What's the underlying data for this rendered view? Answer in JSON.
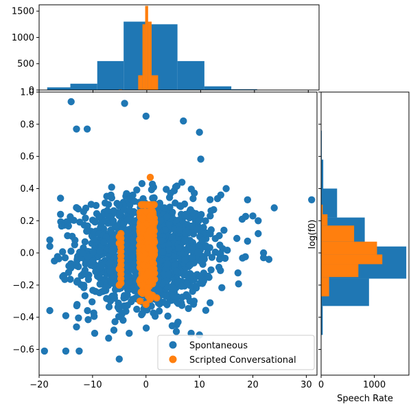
{
  "chart_data": {
    "type": "scatter",
    "xlabel": "Speech Rate",
    "ylabel": "log(f0)",
    "xlim": [
      -20,
      32
    ],
    "ylim": [
      -0.76,
      1.0
    ],
    "grid": false,
    "legend_position": "lower-right",
    "colors": {
      "spontaneous": "#1f77b4",
      "scripted": "#ff7f0e"
    },
    "x_ticks": [
      -20,
      -10,
      0,
      10,
      20,
      30
    ],
    "y_ticks": [
      -0.6,
      -0.4,
      -0.2,
      0.0,
      0.2,
      0.4,
      0.6,
      0.8,
      1.0
    ],
    "x_tick_labels": [
      "−20",
      "−10",
      "0",
      "10",
      "20",
      "30"
    ],
    "y_tick_labels": [
      "−0.6",
      "−0.4",
      "−0.2",
      "0.0",
      "0.2",
      "0.4",
      "0.6",
      "0.8",
      "1.0"
    ],
    "series": [
      {
        "name": "Spontaneous",
        "color": "#1f77b4"
      },
      {
        "name": "Scripted Conversational",
        "color": "#ff7f0e"
      }
    ],
    "spontaneous_outliers": [
      [
        -19,
        -0.61
      ],
      [
        -15,
        -0.61
      ],
      [
        -12.5,
        -0.61
      ],
      [
        -5,
        -0.66
      ],
      [
        -14,
        0.94
      ],
      [
        -4,
        0.93
      ],
      [
        0,
        0.85
      ],
      [
        7,
        0.82
      ],
      [
        10,
        0.75
      ],
      [
        -13,
        0.77
      ],
      [
        -11,
        0.77
      ],
      [
        21,
        0.12
      ],
      [
        21,
        0.2
      ],
      [
        22,
        0.0
      ],
      [
        22,
        -0.03
      ],
      [
        23,
        -0.04
      ],
      [
        24,
        0.28
      ],
      [
        31,
        0.33
      ],
      [
        19,
        0.33
      ],
      [
        20,
        0.23
      ],
      [
        12,
        -0.31
      ],
      [
        10,
        -0.51
      ],
      [
        -16,
        0.34
      ],
      [
        -16,
        0.24
      ],
      [
        -15,
        -0.39
      ],
      [
        -13,
        -0.46
      ],
      [
        -6,
        -0.48
      ],
      [
        -7,
        -0.53
      ],
      [
        6,
        -0.43
      ],
      [
        9,
        -0.3
      ],
      [
        17,
        0.09
      ],
      [
        18,
        0.21
      ],
      [
        14,
        0.36
      ],
      [
        15,
        0.4
      ]
    ],
    "spontaneous_cloud": {
      "mean_x": 0,
      "sd_x": 6.2,
      "mean_y": 0.0,
      "sd_y": 0.17,
      "count": 1400
    },
    "scripted_main": {
      "x_range": [
        -1.2,
        1.6
      ],
      "mean_y": 0.02,
      "sd_y": 0.13,
      "count": 520
    },
    "scripted_extra": [
      [
        -5,
        0.1
      ],
      [
        -5,
        0.06
      ],
      [
        -5,
        -0.1
      ],
      [
        -5,
        -0.2
      ],
      [
        0.8,
        0.47
      ],
      [
        0,
        -0.32
      ],
      [
        2,
        -0.28
      ]
    ],
    "top_histogram": {
      "y_ticks": [
        0,
        500,
        1000,
        1500
      ],
      "y_tick_labels": [
        "0",
        "500",
        "1000",
        "1500"
      ],
      "ylim": [
        0,
        1620
      ],
      "spontaneous_bins": [
        {
          "x0": -18.5,
          "x1": -14.2,
          "count": 50
        },
        {
          "x0": -14.2,
          "x1": -9.2,
          "count": 120
        },
        {
          "x0": -9.2,
          "x1": -4.3,
          "count": 550
        },
        {
          "x0": -4.3,
          "x1": 0.8,
          "count": 1300
        },
        {
          "x0": 0.8,
          "x1": 5.7,
          "count": 1250
        },
        {
          "x0": 5.7,
          "x1": 10.7,
          "count": 550
        },
        {
          "x0": 10.7,
          "x1": 15.7,
          "count": 70
        },
        {
          "x0": 15.7,
          "x1": 20.5,
          "count": 15
        }
      ],
      "scripted_bins": [
        {
          "x0": -5.2,
          "x1": -4.6,
          "count": 12
        },
        {
          "x0": -1.6,
          "x1": -0.8,
          "count": 280
        },
        {
          "x0": -0.8,
          "x1": -0.3,
          "count": 1250
        },
        {
          "x0": -0.3,
          "x1": 0.25,
          "count": 1600
        },
        {
          "x0": 0.25,
          "x1": 0.9,
          "count": 1300
        },
        {
          "x0": 0.9,
          "x1": 2.1,
          "count": 280
        }
      ]
    },
    "right_histogram": {
      "x_ticks": [
        0,
        1000
      ],
      "x_tick_labels": [
        "0",
        "1000"
      ],
      "xlim": [
        0,
        1650
      ],
      "spontaneous_bins": [
        {
          "y0": -0.51,
          "y1": -0.33,
          "count": 30
        },
        {
          "y0": -0.33,
          "y1": -0.16,
          "count": 900
        },
        {
          "y0": -0.16,
          "y1": 0.04,
          "count": 1600
        },
        {
          "y0": 0.04,
          "y1": 0.22,
          "count": 820
        },
        {
          "y0": 0.22,
          "y1": 0.4,
          "count": 300
        },
        {
          "y0": 0.4,
          "y1": 0.58,
          "count": 40
        },
        {
          "y0": 0.58,
          "y1": 0.76,
          "count": 12
        }
      ],
      "scripted_bins": [
        {
          "y0": -0.27,
          "y1": -0.15,
          "count": 150
        },
        {
          "y0": -0.15,
          "y1": -0.07,
          "count": 700
        },
        {
          "y0": -0.07,
          "y1": -0.01,
          "count": 1150
        },
        {
          "y0": -0.01,
          "y1": 0.07,
          "count": 1050
        },
        {
          "y0": 0.07,
          "y1": 0.17,
          "count": 620
        },
        {
          "y0": 0.17,
          "y1": 0.24,
          "count": 120
        },
        {
          "y0": 0.24,
          "y1": 0.3,
          "count": 30
        }
      ]
    }
  }
}
